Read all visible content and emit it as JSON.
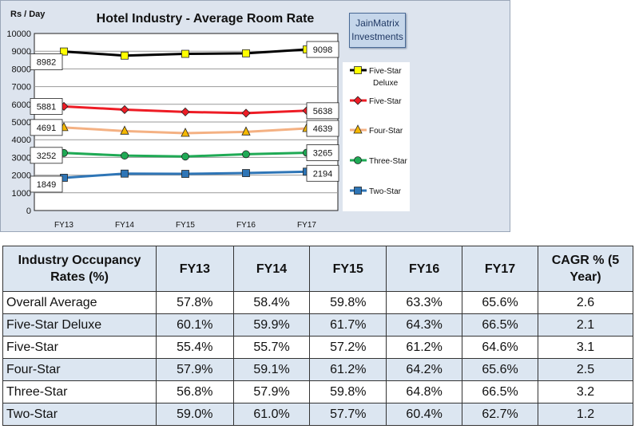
{
  "chart_data": {
    "type": "line",
    "title": "Hotel Industry - Average Room Rate",
    "ylabel": "Rs / Day",
    "categories": [
      "FY13",
      "FY14",
      "FY15",
      "FY16",
      "FY17"
    ],
    "ylim": [
      0,
      10000
    ],
    "yticks": [
      "0",
      "1000",
      "2000",
      "3000",
      "4000",
      "5000",
      "6000",
      "7000",
      "8000",
      "9000",
      "10000"
    ],
    "grid": true,
    "legend_position": "right",
    "series": [
      {
        "name": "Five-Star Deluxe",
        "values": [
          8982,
          8750,
          8850,
          8880,
          9098
        ],
        "color": "#000000",
        "marker": "square",
        "marker_fill": "#ffff00",
        "labels": [
          "8982",
          "9098"
        ]
      },
      {
        "name": "Five-Star",
        "values": [
          5881,
          5700,
          5570,
          5500,
          5638
        ],
        "color": "#ee1c25",
        "marker": "diamond",
        "marker_fill": "#ee1c25",
        "labels": [
          "5881",
          "5638"
        ]
      },
      {
        "name": "Four-Star",
        "values": [
          4691,
          4490,
          4370,
          4445,
          4639
        ],
        "color": "#f4b183",
        "marker": "triangle",
        "marker_fill": "#f5b800",
        "labels": [
          "4691",
          "4639"
        ]
      },
      {
        "name": "Three-Star",
        "values": [
          3252,
          3100,
          3050,
          3180,
          3265
        ],
        "color": "#1faa55",
        "marker": "circle",
        "marker_fill": "#1faa55",
        "labels": [
          "3252",
          "3265"
        ]
      },
      {
        "name": "Two-Star",
        "values": [
          1849,
          2085,
          2070,
          2115,
          2194
        ],
        "color": "#2e75b6",
        "marker": "square",
        "marker_fill": "#2e75b6",
        "labels": [
          "1849",
          "2194"
        ]
      }
    ]
  },
  "brand": {
    "line1": "JainMatrix",
    "line2": "Investments"
  },
  "table": {
    "header": [
      "Industry Occupancy Rates (%)",
      "FY13",
      "FY14",
      "FY15",
      "FY16",
      "FY17",
      "CAGR % (5 Year)"
    ],
    "rows": [
      [
        "Overall Average",
        "57.8%",
        "58.4%",
        "59.8%",
        "63.3%",
        "65.6%",
        "2.6"
      ],
      [
        "Five-Star Deluxe",
        "60.1%",
        "59.9%",
        "61.7%",
        "64.3%",
        "66.5%",
        "2.1"
      ],
      [
        "Five-Star",
        "55.4%",
        "55.7%",
        "57.2%",
        "61.2%",
        "64.6%",
        "3.1"
      ],
      [
        "Four-Star",
        "57.9%",
        "59.1%",
        "61.2%",
        "64.2%",
        "65.6%",
        "2.5"
      ],
      [
        "Three-Star",
        "56.8%",
        "57.9%",
        "59.8%",
        "64.8%",
        "66.5%",
        "3.2"
      ],
      [
        "Two-Star",
        "59.0%",
        "61.0%",
        "57.7%",
        "60.4%",
        "62.7%",
        "1.2"
      ]
    ]
  }
}
